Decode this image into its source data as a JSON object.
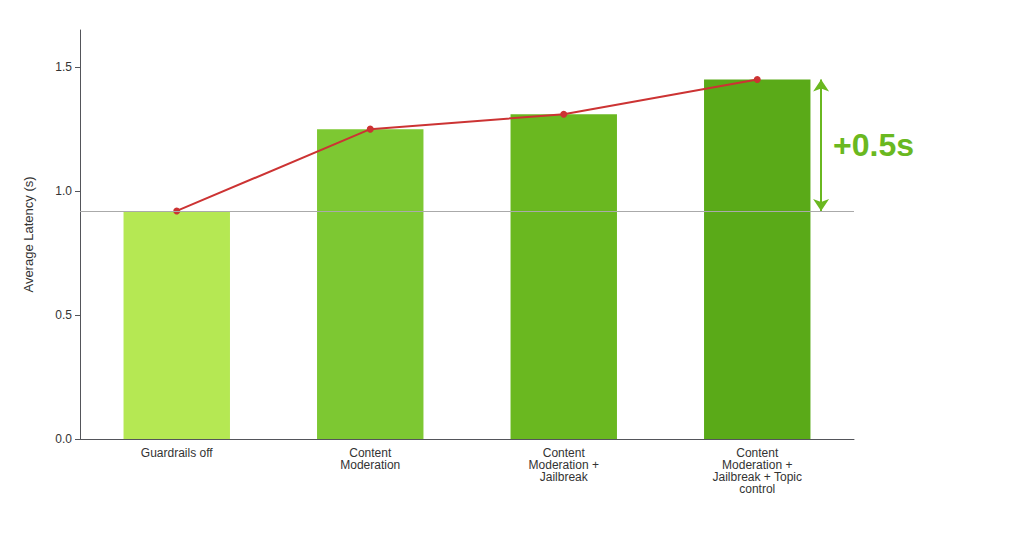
{
  "chart_data": {
    "type": "bar",
    "categories": [
      "Guardrails off",
      "Content\nModeration",
      "Content\nModeration +\nJailbreak",
      "Content\nModeration +\nJailbreak + Topic\ncontrol"
    ],
    "series": [
      {
        "type": "bar",
        "colors": [
          "#b5e853",
          "#7dc832",
          "#6ab820",
          "#5aaa18"
        ],
        "values": [
          0.92,
          1.25,
          1.31,
          1.45
        ]
      },
      {
        "type": "line",
        "color": "#cc3333",
        "marker": "circle",
        "line_style": "solid",
        "values": [
          0.92,
          1.25,
          1.31,
          1.45
        ]
      }
    ],
    "ylabel": "Average Latency (s)",
    "ylim": [
      0,
      1.65
    ],
    "yticks": [
      {
        "value": 0.0,
        "label": "0.0"
      },
      0.5,
      {
        "value": 1.0,
        "label": "1.0"
      },
      1.5
    ],
    "grid": false,
    "reference_line": {
      "value": 0.92,
      "color": "#aaaaaa"
    },
    "annotations": [
      {
        "text": "+0.5s",
        "color": "#6ab820",
        "y_top": 1.45,
        "y_bottom": 0.92
      }
    ]
  }
}
